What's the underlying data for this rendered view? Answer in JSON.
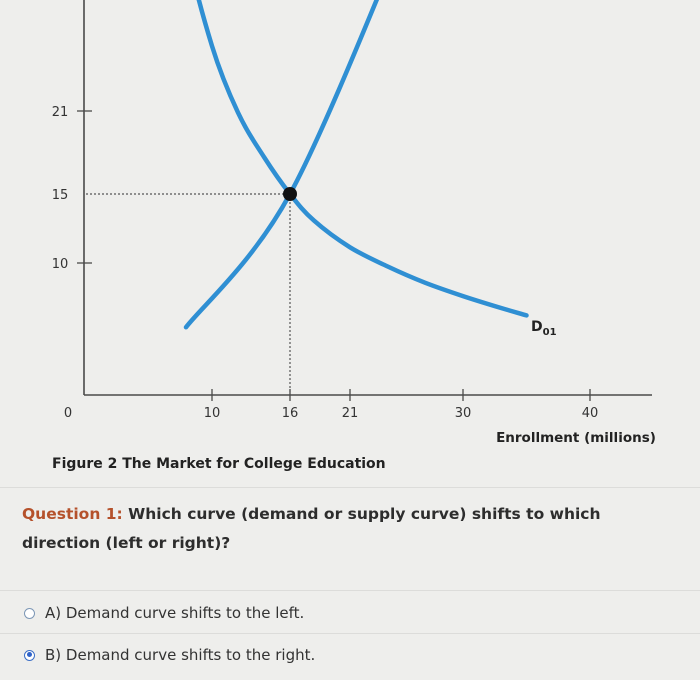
{
  "chart_data": {
    "type": "line",
    "title": "Figure 2 The Market for College Education",
    "xlabel": "Enrollment (millions)",
    "ylabel": "",
    "x_ticks": [
      "10",
      "16",
      "21",
      "30",
      "40"
    ],
    "y_ticks": [
      "21",
      "15",
      "10"
    ],
    "origin_label": "0",
    "series": [
      {
        "name": "D01",
        "kind": "demand",
        "x": [
          7,
          8,
          10,
          12,
          14,
          16,
          18,
          21,
          24,
          27,
          30,
          33,
          35
        ],
        "y": [
          40,
          32,
          25,
          20.5,
          17.5,
          15,
          13.2,
          11.4,
          10.1,
          9,
          8.1,
          7.3,
          6.8
        ]
      },
      {
        "name": "",
        "kind": "supply",
        "x": [
          8,
          16,
          26
        ],
        "y": [
          6,
          15,
          34
        ]
      }
    ],
    "equilibrium": {
      "x": 16,
      "y": 15
    },
    "demand_label": {
      "main": "D",
      "sub": "01"
    }
  },
  "caption": "Figure 2 The Market for College Education",
  "question": {
    "prefix": "Question 1:",
    "text": " Which curve (demand or supply curve) shifts to which direction (left or right)?"
  },
  "options": [
    {
      "label": "A) Demand curve shifts to the left.",
      "selected": false
    },
    {
      "label": "B) Demand curve shifts to the right.",
      "selected": true
    }
  ],
  "colors": {
    "curve": "#2f8fd3",
    "axis": "#4a4a4a",
    "dot": "#111111",
    "question_prefix": "#b5512b",
    "radio": "#2f63c9"
  }
}
